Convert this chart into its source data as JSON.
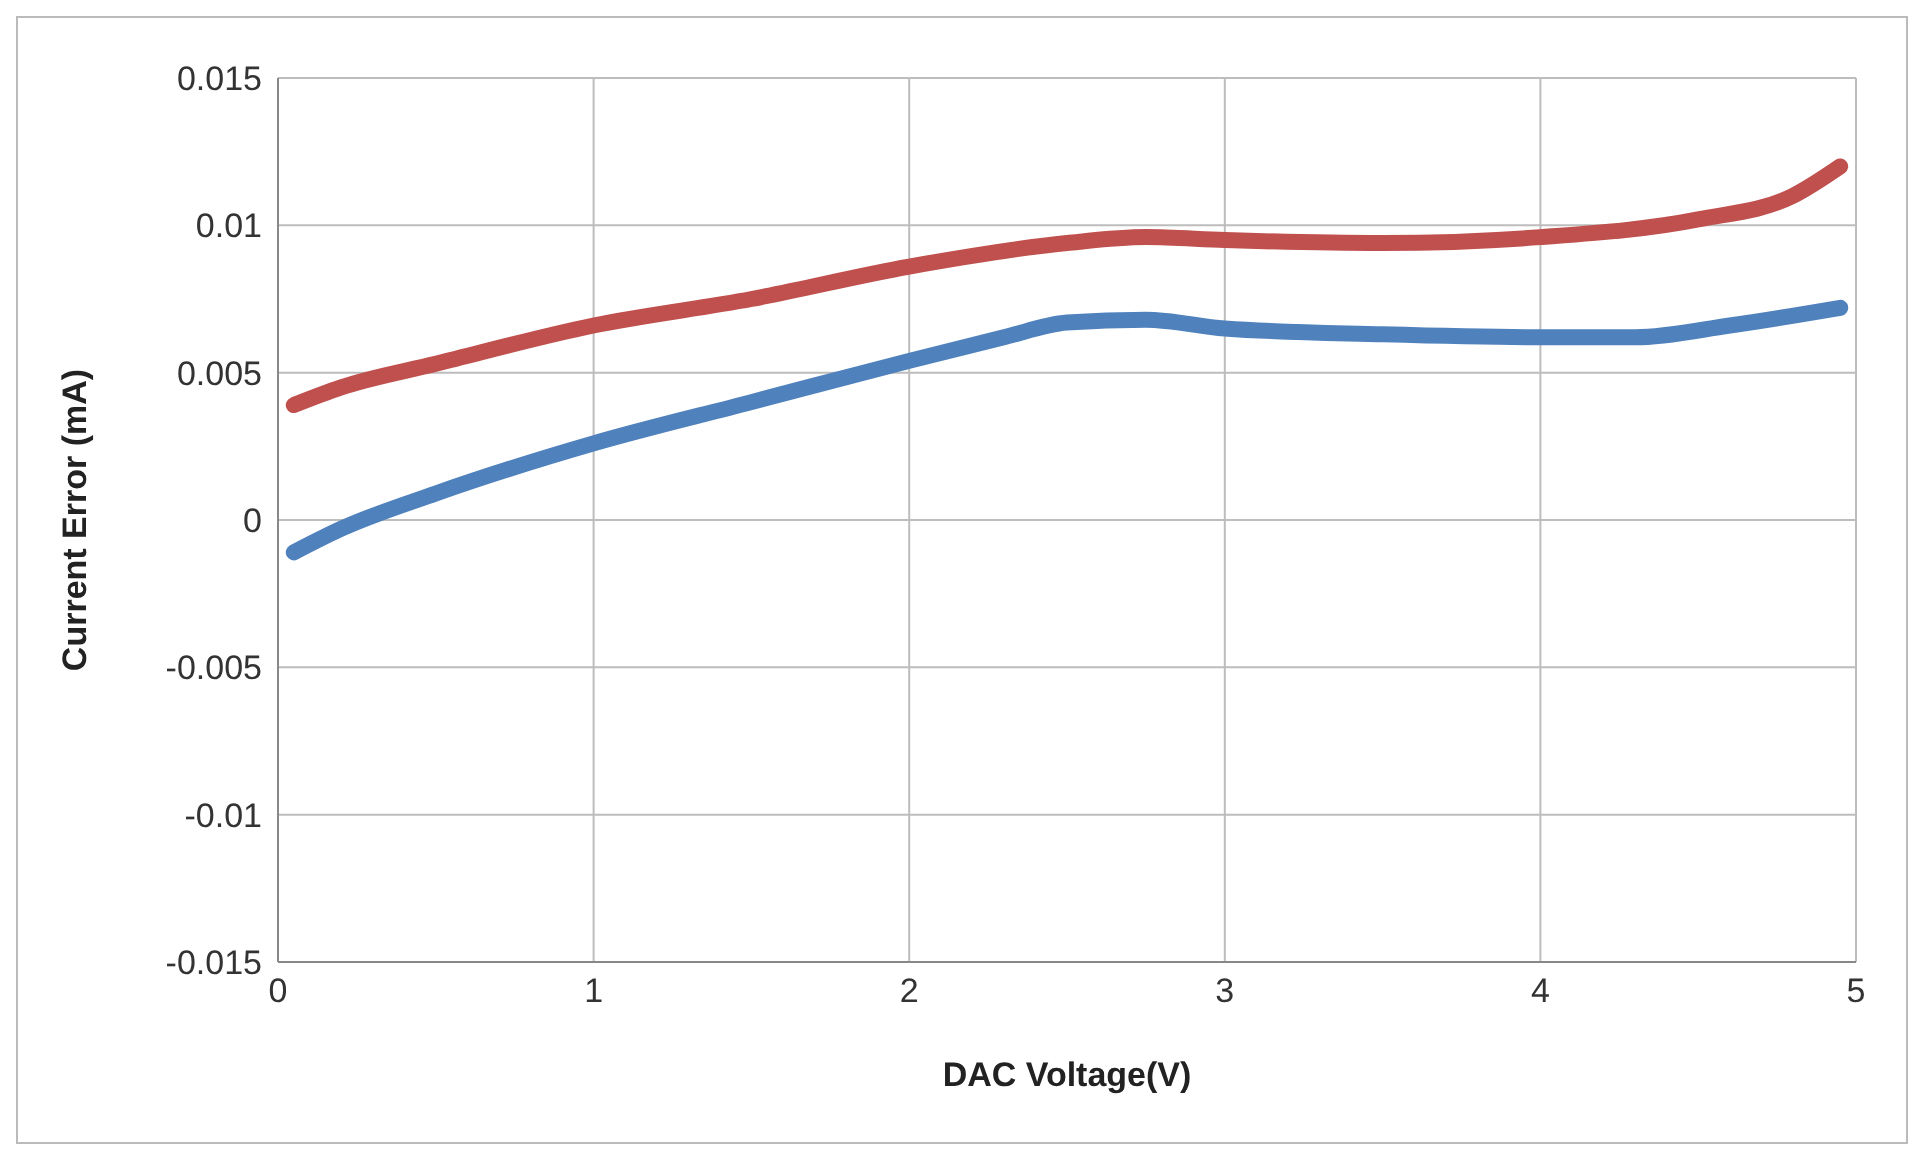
{
  "chart_data": {
    "type": "line",
    "xlabel": "DAC Voltage(V)",
    "ylabel": "Current Error (mA)",
    "xlim": [
      0,
      5
    ],
    "xticks": [
      0,
      1,
      2,
      3,
      4,
      5
    ],
    "ylim": [
      -0.015,
      0.015
    ],
    "yticks": [
      -0.015,
      -0.01,
      -0.005,
      0,
      0.005,
      0.01,
      0.015
    ],
    "grid": true,
    "marker": "none",
    "line_style": "solid",
    "series": [
      {
        "color": "#c0504d",
        "x": [
          0.05,
          0.2,
          0.5,
          1,
          1.5,
          2,
          2.5,
          2.75,
          3,
          3.5,
          4,
          4.5,
          4.8,
          4.95
        ],
        "values": [
          0.0039,
          0.0045,
          0.0053,
          0.0066,
          0.0075,
          0.0086,
          0.0094,
          0.0096,
          0.0095,
          0.0094,
          0.0096,
          0.0102,
          0.011,
          0.012
        ]
      },
      {
        "color": "#4f81bd",
        "x": [
          0.05,
          0.2,
          0.5,
          1,
          1.5,
          2,
          2.3,
          2.5,
          2.75,
          3,
          3.5,
          4,
          4.3,
          4.6,
          4.95
        ],
        "values": [
          -0.0011,
          -0.0003,
          0.0009,
          0.0026,
          0.004,
          0.0054,
          0.0062,
          0.0067,
          0.0068,
          0.0065,
          0.0063,
          0.0062,
          0.0062,
          0.0066,
          0.0072
        ]
      }
    ]
  }
}
